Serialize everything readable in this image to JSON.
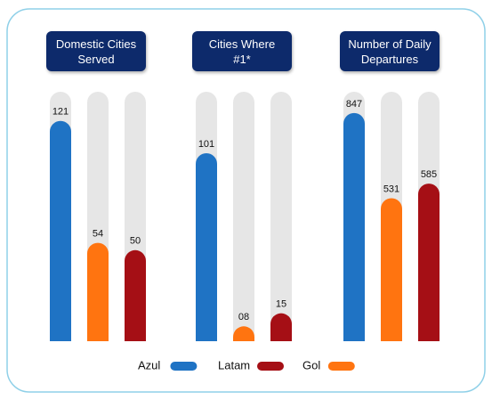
{
  "series": [
    {
      "name": "Azul",
      "color": "#1f73c4"
    },
    {
      "name": "Gol",
      "color": "#ff7410"
    },
    {
      "name": "Latam",
      "color": "#a50f15"
    }
  ],
  "chart_data": [
    {
      "type": "bar",
      "title": "Domestic Cities\nServed",
      "values": [
        121,
        54,
        50
      ],
      "ylim": [
        0,
        137
      ]
    },
    {
      "type": "bar",
      "title": "Cities Where\n#1*",
      "values": [
        101,
        8,
        15
      ],
      "value_labels": [
        "101",
        "08",
        "15"
      ],
      "ylim": [
        0,
        134
      ]
    },
    {
      "type": "bar",
      "title": "Number of Daily\nDepartures",
      "values": [
        847,
        531,
        585
      ],
      "ylim": [
        0,
        926
      ]
    }
  ]
}
